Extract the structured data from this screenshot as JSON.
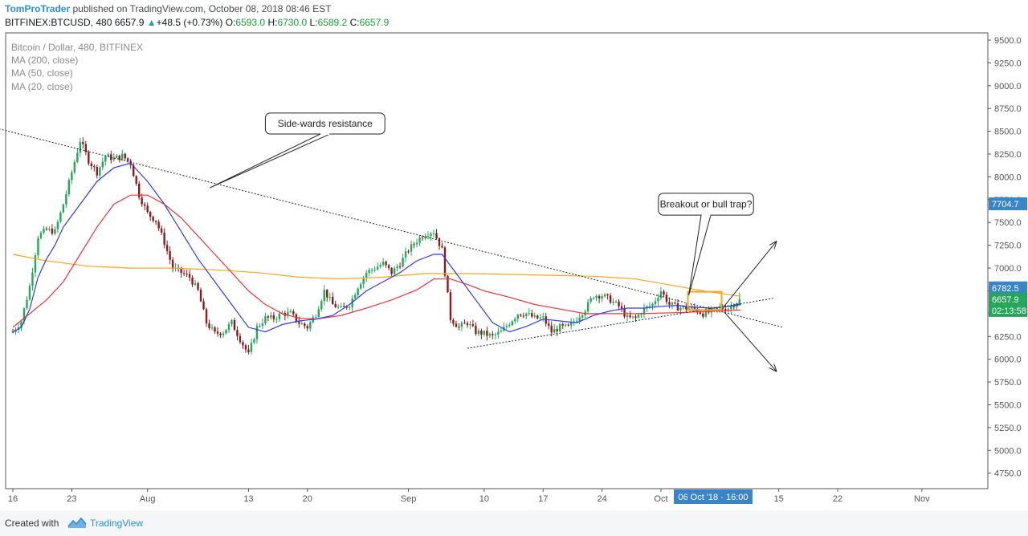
{
  "header": {
    "author": "TomProTrader",
    "published": "published on TradingView.com, October 08, 2018 08:46 EST",
    "symbol": "BITFINEX:BTCUSD, 480",
    "last": "6657.9",
    "change": "+48.5 (+0.73%)",
    "open_label": "O:",
    "open": "6593.0",
    "high_label": "H:",
    "high": "6730.0",
    "low_label": "L:",
    "low": "6589.2",
    "close_label": "C:",
    "close": "6657.9"
  },
  "legend": [
    "Bitcoin / Dollar, 480, BITFINEX",
    "MA (200, close)",
    "MA (50, close)",
    "MA (20, close)"
  ],
  "footer": {
    "created": "Created with",
    "brand": "TradingView"
  },
  "colors": {
    "up": "#26a65b",
    "down": "#8b1a1a",
    "ma200": "#f5a623",
    "ma50": "#e8373c",
    "ma20": "#2d3de0",
    "accent": "#2e8fd6"
  },
  "chart_data": {
    "type": "candlestick",
    "ylim": [
      4600,
      9600
    ],
    "y_ticks": [
      "9500.0",
      "9250.0",
      "9000.0",
      "8750.0",
      "8500.0",
      "8250.0",
      "8000.0",
      "7750.0",
      "7500.0",
      "7250.0",
      "7000.0",
      "6750.0",
      "6500.0",
      "6250.0",
      "6000.0",
      "5750.0",
      "5500.0",
      "5250.0",
      "5000.0",
      "4750.0"
    ],
    "x_labels": [
      "16",
      "23",
      "Aug",
      "13",
      "20",
      "Sep",
      "10",
      "17",
      "24",
      "Oct",
      "15",
      "22",
      "Nov"
    ],
    "price_labels": [
      {
        "text": "7704.7",
        "value": 7704.7,
        "color": "#3a84c8"
      },
      {
        "text": "6782.5",
        "value": 6782.5,
        "color": "#3a84c8"
      },
      {
        "text": "6657.9",
        "value": 6657.9,
        "color": "#26a65b"
      },
      {
        "text": "02:13:58",
        "value": 6535,
        "color": "#26a65b"
      }
    ],
    "crosshair_label": "06 Oct '18 · 16:00",
    "anchors": [
      {
        "day": 16,
        "price": 6300
      },
      {
        "day": 17,
        "price": 6420
      },
      {
        "day": 18,
        "price": 6800
      },
      {
        "day": 19,
        "price": 7350
      },
      {
        "day": 20,
        "price": 7420
      },
      {
        "day": 21,
        "price": 7400
      },
      {
        "day": 22,
        "price": 7700
      },
      {
        "day": 23,
        "price": 8050
      },
      {
        "day": 24,
        "price": 8400
      },
      {
        "day": 25,
        "price": 8180
      },
      {
        "day": 26,
        "price": 8050
      },
      {
        "day": 27,
        "price": 8230
      },
      {
        "day": 28,
        "price": 8200
      },
      {
        "day": 29,
        "price": 8230
      },
      {
        "day": 30,
        "price": 8150
      },
      {
        "day": 31,
        "price": 7800
      },
      {
        "day": 32,
        "price": 7600
      },
      {
        "day": 33,
        "price": 7520
      },
      {
        "day": 34,
        "price": 7280
      },
      {
        "day": 35,
        "price": 7000
      },
      {
        "day": 36,
        "price": 6950
      },
      {
        "day": 37,
        "price": 6900
      },
      {
        "day": 38,
        "price": 6750
      },
      {
        "day": 39,
        "price": 6400
      },
      {
        "day": 40,
        "price": 6280
      },
      {
        "day": 41,
        "price": 6300
      },
      {
        "day": 42,
        "price": 6400
      },
      {
        "day": 43,
        "price": 6220
      },
      {
        "day": 44,
        "price": 6050
      },
      {
        "day": 45,
        "price": 6350
      },
      {
        "day": 46,
        "price": 6450
      },
      {
        "day": 47,
        "price": 6450
      },
      {
        "day": 48,
        "price": 6500
      },
      {
        "day": 49,
        "price": 6500
      },
      {
        "day": 50,
        "price": 6400
      },
      {
        "day": 51,
        "price": 6350
      },
      {
        "day": 52,
        "price": 6500
      },
      {
        "day": 53,
        "price": 6750
      },
      {
        "day": 54,
        "price": 6600
      },
      {
        "day": 55,
        "price": 6550
      },
      {
        "day": 56,
        "price": 6600
      },
      {
        "day": 57,
        "price": 6800
      },
      {
        "day": 58,
        "price": 6950
      },
      {
        "day": 59,
        "price": 7000
      },
      {
        "day": 60,
        "price": 7050
      },
      {
        "day": 61,
        "price": 6950
      },
      {
        "day": 62,
        "price": 7050
      },
      {
        "day": 63,
        "price": 7200
      },
      {
        "day": 64,
        "price": 7300
      },
      {
        "day": 65,
        "price": 7380
      },
      {
        "day": 66,
        "price": 7400
      },
      {
        "day": 67,
        "price": 7200
      },
      {
        "day": 68,
        "price": 6450
      },
      {
        "day": 69,
        "price": 6350
      },
      {
        "day": 70,
        "price": 6400
      },
      {
        "day": 71,
        "price": 6300
      },
      {
        "day": 72,
        "price": 6280
      },
      {
        "day": 73,
        "price": 6250
      },
      {
        "day": 74,
        "price": 6300
      },
      {
        "day": 75,
        "price": 6400
      },
      {
        "day": 76,
        "price": 6500
      },
      {
        "day": 77,
        "price": 6500
      },
      {
        "day": 78,
        "price": 6450
      },
      {
        "day": 79,
        "price": 6450
      },
      {
        "day": 80,
        "price": 6300
      },
      {
        "day": 81,
        "price": 6350
      },
      {
        "day": 82,
        "price": 6350
      },
      {
        "day": 83,
        "price": 6450
      },
      {
        "day": 84,
        "price": 6550
      },
      {
        "day": 85,
        "price": 6700
      },
      {
        "day": 86,
        "price": 6700
      },
      {
        "day": 87,
        "price": 6650
      },
      {
        "day": 88,
        "price": 6580
      },
      {
        "day": 89,
        "price": 6450
      },
      {
        "day": 90,
        "price": 6450
      },
      {
        "day": 91,
        "price": 6550
      },
      {
        "day": 92,
        "price": 6600
      },
      {
        "day": 93,
        "price": 6750
      },
      {
        "day": 94,
        "price": 6600
      },
      {
        "day": 95,
        "price": 6570
      },
      {
        "day": 96,
        "price": 6560
      },
      {
        "day": 97,
        "price": 6550
      },
      {
        "day": 98,
        "price": 6500
      },
      {
        "day": 99,
        "price": 6520
      },
      {
        "day": 100,
        "price": 6560
      },
      {
        "day": 101,
        "price": 6560
      },
      {
        "day": 102,
        "price": 6630
      },
      {
        "day": 102.5,
        "price": 6658
      }
    ],
    "ma200": [
      [
        16,
        7150
      ],
      [
        20,
        7080
      ],
      [
        25,
        7020
      ],
      [
        30,
        7000
      ],
      [
        35,
        7000
      ],
      [
        40,
        6980
      ],
      [
        45,
        6950
      ],
      [
        50,
        6900
      ],
      [
        55,
        6880
      ],
      [
        60,
        6900
      ],
      [
        65,
        6940
      ],
      [
        70,
        6940
      ],
      [
        75,
        6930
      ],
      [
        80,
        6920
      ],
      [
        85,
        6910
      ],
      [
        90,
        6880
      ],
      [
        95,
        6800
      ],
      [
        98,
        6750
      ],
      [
        102.5,
        6690
      ]
    ],
    "ma50": [
      [
        16,
        6350
      ],
      [
        18,
        6500
      ],
      [
        20,
        6650
      ],
      [
        22,
        6850
      ],
      [
        24,
        7150
      ],
      [
        26,
        7450
      ],
      [
        28,
        7700
      ],
      [
        30,
        7800
      ],
      [
        32,
        7800
      ],
      [
        34,
        7700
      ],
      [
        36,
        7550
      ],
      [
        38,
        7350
      ],
      [
        40,
        7150
      ],
      [
        42,
        6950
      ],
      [
        44,
        6750
      ],
      [
        46,
        6600
      ],
      [
        48,
        6500
      ],
      [
        50,
        6450
      ],
      [
        52,
        6440
      ],
      [
        55,
        6480
      ],
      [
        58,
        6560
      ],
      [
        61,
        6650
      ],
      [
        64,
        6760
      ],
      [
        66,
        6880
      ],
      [
        68,
        6880
      ],
      [
        70,
        6820
      ],
      [
        72,
        6750
      ],
      [
        75,
        6680
      ],
      [
        78,
        6600
      ],
      [
        81,
        6550
      ],
      [
        84,
        6500
      ],
      [
        87,
        6500
      ],
      [
        90,
        6500
      ],
      [
        95,
        6510
      ],
      [
        100,
        6530
      ],
      [
        102.5,
        6540
      ]
    ],
    "ma20": [
      [
        16,
        6300
      ],
      [
        17,
        6350
      ],
      [
        18,
        6550
      ],
      [
        19,
        6900
      ],
      [
        20,
        7100
      ],
      [
        21,
        7250
      ],
      [
        22,
        7450
      ],
      [
        24,
        7700
      ],
      [
        26,
        7950
      ],
      [
        28,
        8100
      ],
      [
        30,
        8150
      ],
      [
        32,
        7950
      ],
      [
        34,
        7700
      ],
      [
        36,
        7400
      ],
      [
        38,
        7100
      ],
      [
        40,
        6850
      ],
      [
        42,
        6600
      ],
      [
        44,
        6350
      ],
      [
        46,
        6300
      ],
      [
        48,
        6380
      ],
      [
        50,
        6420
      ],
      [
        52,
        6440
      ],
      [
        54,
        6480
      ],
      [
        56,
        6600
      ],
      [
        58,
        6750
      ],
      [
        60,
        6850
      ],
      [
        62,
        6950
      ],
      [
        64,
        7080
      ],
      [
        66,
        7150
      ],
      [
        67,
        7150
      ],
      [
        69,
        6900
      ],
      [
        71,
        6650
      ],
      [
        73,
        6400
      ],
      [
        75,
        6300
      ],
      [
        77,
        6360
      ],
      [
        79,
        6440
      ],
      [
        81,
        6420
      ],
      [
        83,
        6400
      ],
      [
        85,
        6480
      ],
      [
        87,
        6530
      ],
      [
        89,
        6560
      ],
      [
        91,
        6560
      ],
      [
        93,
        6580
      ],
      [
        95,
        6590
      ],
      [
        97,
        6570
      ],
      [
        99,
        6560
      ],
      [
        101,
        6580
      ],
      [
        102.5,
        6600
      ]
    ],
    "trendlines": [
      {
        "dash": true,
        "from": [
          12.5,
          8570
        ],
        "to": [
          107.5,
          6350
        ]
      },
      {
        "dash": true,
        "from": [
          70,
          6120
        ],
        "to": [
          106.5,
          6670
        ]
      },
      {
        "dash": false,
        "from": [
          100.5,
          6580
        ],
        "to": [
          106.7,
          7290
        ]
      },
      {
        "dash": false,
        "from": [
          100.5,
          6520
        ],
        "to": [
          106.7,
          5870
        ]
      }
    ],
    "annotations": [
      {
        "text": "Side-wards resistance",
        "box_day": [
          46,
          60.2
        ],
        "box_top": 8700,
        "box_bottom": 8470,
        "pointer_to": [
          39.4,
          7880
        ]
      },
      {
        "text": "Breakout or bull trap?",
        "box_day": [
          92.7,
          104
        ],
        "box_top": 7820,
        "box_bottom": 7580,
        "pointer_to": [
          96.3,
          6700
        ]
      }
    ],
    "highlight": {
      "day": [
        96.2,
        100.2
      ],
      "top": 6740,
      "bottom": 6540
    }
  }
}
